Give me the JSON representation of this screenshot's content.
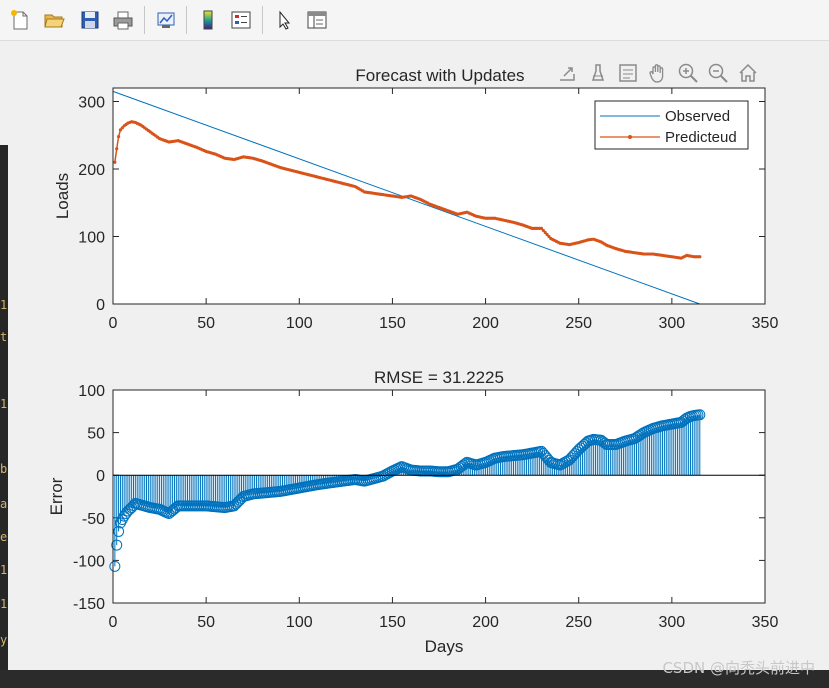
{
  "toolbar": {
    "buttons": [
      {
        "name": "new-figure-icon"
      },
      {
        "name": "open-file-icon"
      },
      {
        "name": "save-icon"
      },
      {
        "name": "print-icon"
      },
      {
        "name": "link-plot-icon"
      },
      {
        "name": "colorbar-icon"
      },
      {
        "name": "legend-icon"
      },
      {
        "name": "edit-plot-icon"
      },
      {
        "name": "property-inspector-icon"
      }
    ]
  },
  "axes_toolbar": {
    "buttons": [
      "export-icon",
      "brush-icon",
      "data-tips-icon",
      "pan-icon",
      "zoom-in-icon",
      "zoom-out-icon",
      "home-icon"
    ]
  },
  "terminal_chars": [
    "1",
    "t",
    "1",
    "b",
    "a",
    "e",
    "1",
    "1",
    "y"
  ],
  "watermark": "CSDN @向秃头前进中",
  "colors": {
    "observed": "#0072bd",
    "predicted": "#d95319",
    "stem": "#0072bd"
  },
  "chart_data": [
    {
      "type": "line",
      "title": "Forecast with Updates",
      "xlabel": "",
      "ylabel": "Loads",
      "xlim": [
        0,
        350
      ],
      "ylim": [
        0,
        320
      ],
      "xticks": [
        "0",
        "50",
        "100",
        "150",
        "200",
        "250",
        "300",
        "350"
      ],
      "yticks": [
        "0",
        "100",
        "200",
        "300"
      ],
      "legend": {
        "position": "top-right",
        "entries": [
          "Observed",
          "Predicteud"
        ]
      },
      "series": [
        {
          "name": "Observed",
          "x": [
            0,
            315
          ],
          "y": [
            315,
            0
          ]
        },
        {
          "name": "Predicteud",
          "x": [
            1,
            2,
            3,
            4,
            6,
            8,
            10,
            12,
            15,
            20,
            25,
            30,
            35,
            40,
            45,
            50,
            55,
            60,
            65,
            70,
            75,
            80,
            90,
            100,
            110,
            120,
            130,
            135,
            140,
            145,
            150,
            155,
            160,
            165,
            170,
            175,
            180,
            185,
            190,
            195,
            200,
            205,
            210,
            215,
            220,
            225,
            230,
            235,
            240,
            245,
            250,
            255,
            258,
            262,
            265,
            270,
            275,
            280,
            285,
            290,
            295,
            300,
            305,
            308,
            310,
            312,
            315
          ],
          "y": [
            210,
            230,
            248,
            258,
            264,
            268,
            270,
            269,
            265,
            255,
            245,
            240,
            242,
            237,
            232,
            226,
            222,
            216,
            214,
            218,
            216,
            212,
            202,
            195,
            188,
            181,
            174,
            166,
            164,
            162,
            160,
            158,
            160,
            155,
            148,
            143,
            138,
            133,
            136,
            130,
            127,
            127,
            124,
            121,
            117,
            112,
            112,
            97,
            90,
            88,
            91,
            95,
            96,
            92,
            87,
            82,
            78,
            76,
            74,
            74,
            72,
            70,
            68,
            72,
            71,
            70,
            70
          ]
        }
      ]
    },
    {
      "type": "stem",
      "title": "RMSE = 31.2225",
      "xlabel": "Days",
      "ylabel": "Error",
      "xlim": [
        0,
        350
      ],
      "ylim": [
        -150,
        100
      ],
      "xticks": [
        "0",
        "50",
        "100",
        "150",
        "200",
        "250",
        "300",
        "350"
      ],
      "yticks": [
        "-150",
        "-100",
        "-50",
        "0",
        "50",
        "100"
      ],
      "x": [
        1,
        2,
        3,
        4,
        6,
        8,
        10,
        12,
        15,
        20,
        25,
        30,
        35,
        40,
        45,
        50,
        55,
        60,
        65,
        70,
        75,
        80,
        90,
        100,
        110,
        120,
        130,
        135,
        140,
        145,
        150,
        155,
        160,
        165,
        170,
        175,
        180,
        185,
        190,
        195,
        200,
        205,
        210,
        215,
        220,
        225,
        230,
        235,
        240,
        245,
        250,
        255,
        258,
        262,
        265,
        270,
        275,
        280,
        285,
        290,
        295,
        300,
        305,
        308,
        310,
        312,
        315
      ],
      "values": [
        -107,
        -82,
        -66,
        -56,
        -48,
        -42,
        -38,
        -33,
        -35,
        -38,
        -40,
        -45,
        -36,
        -36,
        -36,
        -36,
        -37,
        -38,
        -36,
        -25,
        -22,
        -21,
        -19,
        -15,
        -11,
        -8,
        -5,
        -7,
        -4,
        -1,
        5,
        10,
        6,
        5,
        5,
        4,
        4,
        7,
        15,
        12,
        15,
        20,
        22,
        23,
        24,
        26,
        28,
        15,
        12,
        18,
        30,
        40,
        42,
        41,
        36,
        36,
        40,
        43,
        50,
        55,
        58,
        60,
        62,
        67,
        69,
        70,
        71
      ]
    }
  ]
}
